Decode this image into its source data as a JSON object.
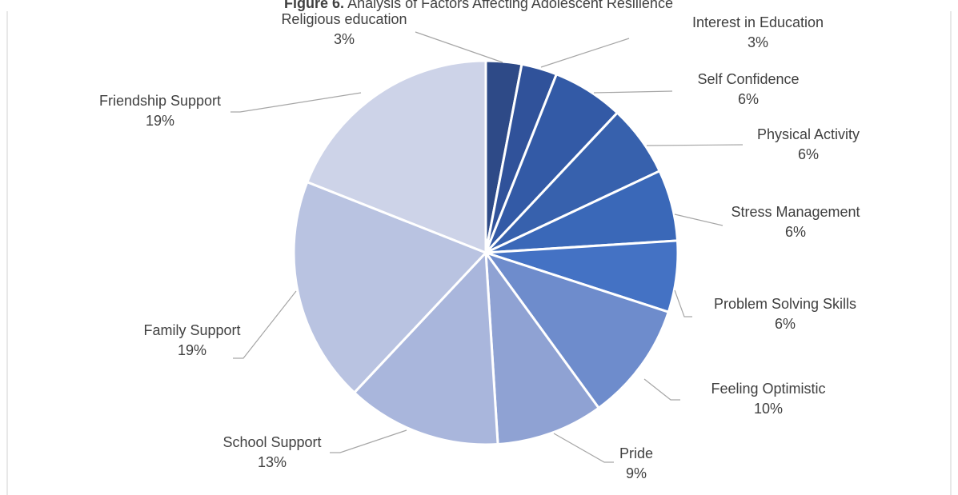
{
  "chart_data": {
    "type": "pie",
    "title_prefix": "Figure 6.",
    "title_rest": " Analysis of Factors Affecting Adolescent Resilience",
    "slices": [
      {
        "label": "Religious education",
        "percent_label": "3%",
        "value": 3,
        "color": "#2e4a87"
      },
      {
        "label": "Interest in Education",
        "percent_label": "3%",
        "value": 3,
        "color": "#30529a"
      },
      {
        "label": "Self Confidence",
        "percent_label": "6%",
        "value": 6,
        "color": "#335aa6"
      },
      {
        "label": "Physical Activity",
        "percent_label": "6%",
        "value": 6,
        "color": "#3761ad"
      },
      {
        "label": "Stress Management",
        "percent_label": "6%",
        "value": 6,
        "color": "#3a68b8"
      },
      {
        "label": "Problem Solving Skills",
        "percent_label": "6%",
        "value": 6,
        "color": "#4472c4"
      },
      {
        "label": "Feeling Optimistic",
        "percent_label": "10%",
        "value": 10,
        "color": "#6e8ccc"
      },
      {
        "label": "Pride",
        "percent_label": "9%",
        "value": 9,
        "color": "#8fa2d3"
      },
      {
        "label": "School Support",
        "percent_label": "13%",
        "value": 13,
        "color": "#a9b6dc"
      },
      {
        "label": "Family Support",
        "percent_label": "19%",
        "value": 19,
        "color": "#b9c3e1"
      },
      {
        "label": "Friendship Support",
        "percent_label": "19%",
        "value": 19,
        "color": "#cdd3e8"
      }
    ]
  }
}
